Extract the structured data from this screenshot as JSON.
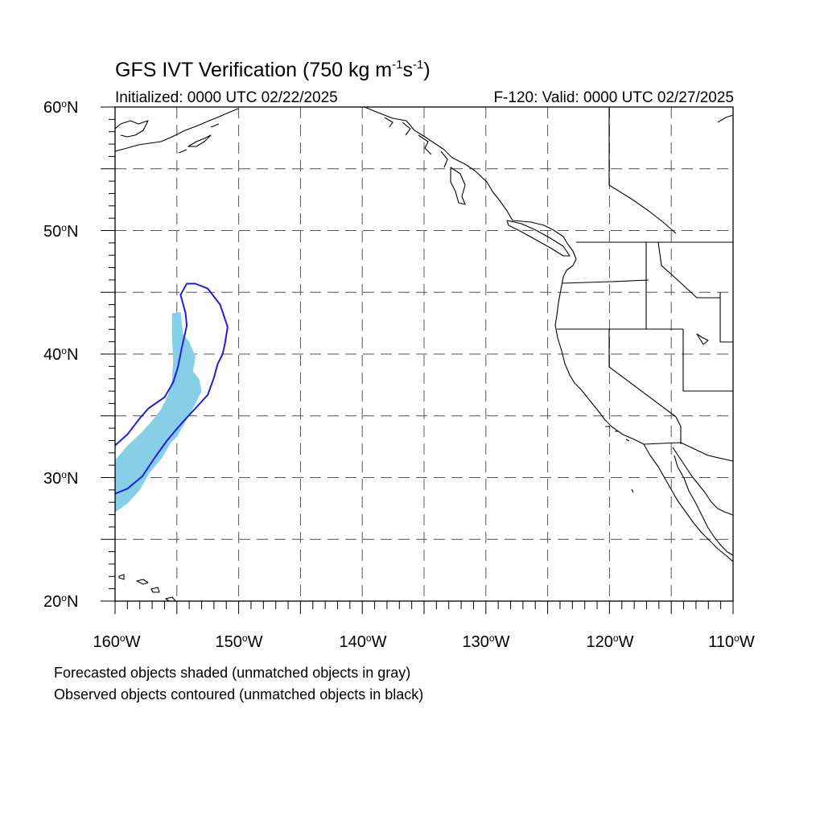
{
  "title": {
    "main": "GFS IVT Verification (750 kg m",
    "exp1": "-1",
    "mid": "s",
    "exp2": "-1",
    "end": ")"
  },
  "subtitle": {
    "left": "Initialized: 0000 UTC 02/22/2025",
    "right": "F-120: Valid: 0000 UTC 02/27/2025"
  },
  "map": {
    "lon_range": [
      -160,
      -110
    ],
    "lat_range": [
      20,
      60
    ],
    "grid_lon_step": 5,
    "grid_lat_step": 5,
    "lat_labels": [
      {
        "num": "60",
        "hemi": "N"
      },
      {
        "num": "50",
        "hemi": "N"
      },
      {
        "num": "40",
        "hemi": "N"
      },
      {
        "num": "30",
        "hemi": "N"
      },
      {
        "num": "20",
        "hemi": "N"
      }
    ],
    "lon_labels": [
      {
        "num": "160",
        "hemi": "W"
      },
      {
        "num": "150",
        "hemi": "W"
      },
      {
        "num": "140",
        "hemi": "W"
      },
      {
        "num": "130",
        "hemi": "W"
      },
      {
        "num": "120",
        "hemi": "W"
      },
      {
        "num": "110",
        "hemi": "W"
      }
    ],
    "forecast_fill_color": "#87CEE8",
    "observed_contour_color": "#1E1EE0",
    "forecast_object": [
      [
        -155.4,
        43.3
      ],
      [
        -154.7,
        43.4
      ],
      [
        -154.5,
        41.6
      ],
      [
        -154.0,
        41.0
      ],
      [
        -153.5,
        39.8
      ],
      [
        -153.7,
        38.6
      ],
      [
        -153.2,
        38.0
      ],
      [
        -153.0,
        37.0
      ],
      [
        -153.6,
        35.8
      ],
      [
        -154.2,
        34.7
      ],
      [
        -155.0,
        33.3
      ],
      [
        -155.5,
        32.8
      ],
      [
        -156.2,
        31.6
      ],
      [
        -157.2,
        30.4
      ],
      [
        -158.0,
        29.0
      ],
      [
        -159.0,
        27.9
      ],
      [
        -160.0,
        27.2
      ],
      [
        -160.0,
        31.4
      ],
      [
        -159.0,
        32.6
      ],
      [
        -158.0,
        33.5
      ],
      [
        -157.0,
        34.6
      ],
      [
        -156.3,
        35.5
      ],
      [
        -155.7,
        36.7
      ],
      [
        -155.4,
        37.9
      ],
      [
        -155.3,
        39.5
      ],
      [
        -155.4,
        41.3
      ]
    ],
    "observed_object": [
      [
        -160.0,
        32.6
      ],
      [
        -159.0,
        33.5
      ],
      [
        -158.0,
        34.8
      ],
      [
        -157.3,
        35.6
      ],
      [
        -156.0,
        36.5
      ],
      [
        -155.3,
        37.7
      ],
      [
        -154.9,
        39.0
      ],
      [
        -154.6,
        40.5
      ],
      [
        -154.2,
        42.3
      ],
      [
        -154.3,
        43.3
      ],
      [
        -154.7,
        44.8
      ],
      [
        -154.2,
        45.7
      ],
      [
        -153.5,
        45.7
      ],
      [
        -152.5,
        45.3
      ],
      [
        -151.5,
        44.0
      ],
      [
        -150.9,
        42.2
      ],
      [
        -151.1,
        40.9
      ],
      [
        -151.3,
        40.0
      ],
      [
        -151.7,
        39.2
      ],
      [
        -152.0,
        38.1
      ],
      [
        -152.5,
        36.7
      ],
      [
        -153.5,
        35.6
      ],
      [
        -154.7,
        34.3
      ],
      [
        -155.8,
        33.0
      ],
      [
        -156.8,
        31.6
      ],
      [
        -157.8,
        30.1
      ],
      [
        -159.0,
        29.1
      ],
      [
        -160.0,
        28.7
      ]
    ]
  },
  "notes": {
    "line1": "Forecasted objects shaded (unmatched objects in gray)",
    "line2": "Observed objects contoured (unmatched objects in black)"
  }
}
